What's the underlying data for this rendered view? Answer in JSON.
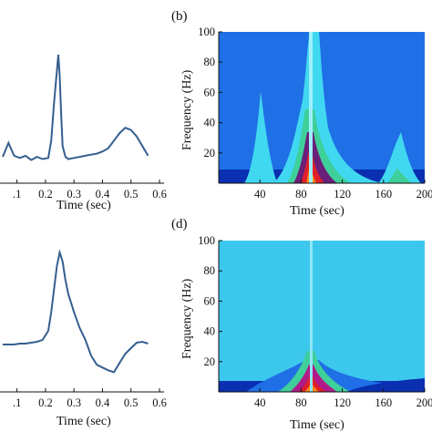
{
  "chart_data": [
    {
      "type": "line",
      "xlabel": "Time (sec)",
      "ylabel": "",
      "xlim": [
        0.05,
        0.6
      ],
      "x_ticks": [
        ".1",
        "0.2",
        "0.3",
        "0.4",
        "0.5",
        "0.6"
      ],
      "x_tick_values": [
        0.1,
        0.2,
        0.3,
        0.4,
        0.5,
        0.6
      ],
      "line_color": "#355f8f",
      "series": [
        {
          "x": [
            0.05,
            0.07,
            0.09,
            0.11,
            0.13,
            0.15,
            0.17,
            0.19,
            0.21,
            0.22,
            0.23,
            0.24,
            0.245,
            0.25,
            0.255,
            0.26,
            0.27,
            0.28,
            0.3,
            0.32,
            0.34,
            0.36,
            0.38,
            0.4,
            0.42,
            0.44,
            0.46,
            0.48,
            0.5,
            0.52,
            0.54,
            0.56
          ],
          "y": [
            0.05,
            0.18,
            0.06,
            0.04,
            0.06,
            0.02,
            0.05,
            0.03,
            0.04,
            0.2,
            0.55,
            0.85,
            1.0,
            0.8,
            0.45,
            0.15,
            0.05,
            0.03,
            0.04,
            0.05,
            0.06,
            0.07,
            0.08,
            0.1,
            0.13,
            0.2,
            0.27,
            0.32,
            0.3,
            0.24,
            0.15,
            0.06
          ]
        }
      ]
    },
    {
      "type": "heatmap",
      "panel_label": "(b)",
      "xlabel": "Time (sec)",
      "ylabel": "Frequency (Hz)",
      "xlim": [
        0,
        200
      ],
      "ylim": [
        0,
        100
      ],
      "x_ticks": [
        "40",
        "80",
        "120",
        "160",
        "200"
      ],
      "x_tick_values": [
        40,
        80,
        120,
        160,
        200
      ],
      "y_ticks": [
        "20",
        "40",
        "60",
        "80",
        "100"
      ],
      "y_tick_values": [
        20,
        40,
        60,
        80,
        100
      ],
      "colormap": [
        "#0a2fb0",
        "#1f6fe6",
        "#2aa8f0",
        "#40d8f0",
        "#3fcf9a",
        "#2a7a3a",
        "#6a1f7a",
        "#b01a8a",
        "#e0202a",
        "#ff8a10"
      ],
      "background_color": "#1f6fe6"
    },
    {
      "type": "line",
      "xlabel": "Time (sec)",
      "ylabel": "",
      "xlim": [
        0.05,
        0.6
      ],
      "x_ticks": [
        ".1",
        "0.2",
        "0.3",
        "0.4",
        "0.5",
        "0.6"
      ],
      "x_tick_values": [
        0.1,
        0.2,
        0.3,
        0.4,
        0.5,
        0.6
      ],
      "line_color": "#355f8f",
      "series": [
        {
          "x": [
            0.05,
            0.07,
            0.09,
            0.11,
            0.13,
            0.15,
            0.17,
            0.19,
            0.21,
            0.22,
            0.23,
            0.24,
            0.25,
            0.26,
            0.27,
            0.28,
            0.29,
            0.3,
            0.32,
            0.34,
            0.36,
            0.38,
            0.4,
            0.42,
            0.44,
            0.46,
            0.48,
            0.5,
            0.52,
            0.54,
            0.56
          ],
          "y": [
            0.0,
            0.0,
            0.0,
            0.01,
            0.01,
            0.02,
            0.03,
            0.05,
            0.15,
            0.35,
            0.6,
            0.85,
            1.0,
            0.9,
            0.7,
            0.55,
            0.45,
            0.35,
            0.18,
            0.05,
            -0.12,
            -0.22,
            -0.25,
            -0.28,
            -0.3,
            -0.2,
            -0.1,
            -0.04,
            0.02,
            0.03,
            0.01
          ]
        }
      ]
    },
    {
      "type": "heatmap",
      "panel_label": "(d)",
      "xlabel": "Time (sec)",
      "ylabel": "Frequency (Hz)",
      "xlim": [
        0,
        200
      ],
      "ylim": [
        0,
        100
      ],
      "x_ticks": [
        "40",
        "80",
        "120",
        "160",
        "200"
      ],
      "x_tick_values": [
        40,
        80,
        120,
        160,
        200
      ],
      "y_ticks": [
        "20",
        "40",
        "60",
        "80",
        "100"
      ],
      "y_tick_values": [
        20,
        40,
        60,
        80,
        100
      ],
      "colormap": [
        "#0a2fb0",
        "#1f6fe6",
        "#2aa8f0",
        "#40d8f0",
        "#3fcf9a",
        "#2a7a3a",
        "#6a1f7a",
        "#b01a8a",
        "#e0202a",
        "#ff8a10"
      ],
      "background_color": "#3cc8ec"
    }
  ]
}
